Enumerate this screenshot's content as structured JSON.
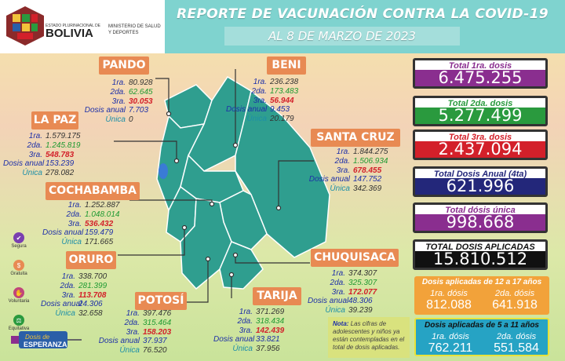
{
  "header": {
    "title": "REPORTE DE VACUNACIÓN CONTRA LA COVID-19",
    "date": "AL  8 DE MARZO  DE 2023"
  },
  "logo": {
    "estado": "ESTADO PLURINACIONAL DE",
    "country": "BOLIVIA",
    "ministerio": "MINISTERIO DE SALUD Y DEPORTES"
  },
  "colors": {
    "dept_label": "#e88a53",
    "map_fill": "#2f9e8f",
    "dose1": "#1d2fa8",
    "dose2": "#1f9a32",
    "dose3": "#d3202a"
  },
  "departments": {
    "pando": {
      "name": "PANDO",
      "rows": [
        {
          "label": "1ra.",
          "value": "80.928"
        },
        {
          "label": "2da.",
          "value": "62.645"
        },
        {
          "label": "3ra.",
          "value": "30.053"
        },
        {
          "label": "Dosis anual",
          "value": "7.703"
        },
        {
          "label": "Única",
          "value": "0"
        }
      ]
    },
    "beni": {
      "name": "BENI",
      "rows": [
        {
          "label": "1ra.",
          "value": "236.238"
        },
        {
          "label": "2da.",
          "value": "173.483"
        },
        {
          "label": "3ra.",
          "value": "56.944"
        },
        {
          "label": "Dosis anual",
          "value": "9.453"
        },
        {
          "label": "Única",
          "value": "20.179"
        }
      ]
    },
    "lapaz": {
      "name": "LA PAZ",
      "rows": [
        {
          "label": "1ra.",
          "value": "1.579.175"
        },
        {
          "label": "2da.",
          "value": "1.245.819"
        },
        {
          "label": "3ra.",
          "value": "548.783"
        },
        {
          "label": "Dosis anual",
          "value": "153.239"
        },
        {
          "label": "Única",
          "value": "278.082"
        }
      ]
    },
    "santacruz": {
      "name": "SANTA CRUZ",
      "rows": [
        {
          "label": "1ra.",
          "value": "1.844.275"
        },
        {
          "label": "2da.",
          "value": "1.506.934"
        },
        {
          "label": "3ra.",
          "value": "678.455"
        },
        {
          "label": "Dosis anual",
          "value": "147.752"
        },
        {
          "label": "Única",
          "value": "342.369"
        }
      ]
    },
    "cochabamba": {
      "name": "COCHABAMBA",
      "rows": [
        {
          "label": "1ra.",
          "value": "1.252.887"
        },
        {
          "label": "2da.",
          "value": "1.048.014"
        },
        {
          "label": "3ra.",
          "value": "536.432"
        },
        {
          "label": "Dosis anual",
          "value": "159.479"
        },
        {
          "label": "Única",
          "value": "171.665"
        }
      ]
    },
    "oruro": {
      "name": "ORURO",
      "rows": [
        {
          "label": "1ra.",
          "value": "338.700"
        },
        {
          "label": "2da.",
          "value": "281.399"
        },
        {
          "label": "3ra.",
          "value": "113.708"
        },
        {
          "label": "Dosis anual",
          "value": "24.306"
        },
        {
          "label": "Única",
          "value": "32.658"
        }
      ]
    },
    "chuquisaca": {
      "name": "CHUQUISACA",
      "rows": [
        {
          "label": "1ra.",
          "value": "374.307"
        },
        {
          "label": "2da.",
          "value": "325.307"
        },
        {
          "label": "3ra.",
          "value": "172.077"
        },
        {
          "label": "Dosis anual",
          "value": "48.306"
        },
        {
          "label": "Única",
          "value": "39.239"
        }
      ]
    },
    "potosi": {
      "name": "POTOSÍ",
      "rows": [
        {
          "label": "1ra.",
          "value": "397.476"
        },
        {
          "label": "2da.",
          "value": "315.464"
        },
        {
          "label": "3ra.",
          "value": "158.203"
        },
        {
          "label": "Dosis anual",
          "value": "37.937"
        },
        {
          "label": "Única",
          "value": "76.520"
        }
      ]
    },
    "tarija": {
      "name": "TARIJA",
      "rows": [
        {
          "label": "1ra.",
          "value": "371.269"
        },
        {
          "label": "2da.",
          "value": "318.434"
        },
        {
          "label": "3ra.",
          "value": "142.439"
        },
        {
          "label": "Dosis anual",
          "value": "33.821"
        },
        {
          "label": "Única",
          "value": "37.956"
        }
      ]
    }
  },
  "totals": [
    {
      "title": "Total 1ra. dosis",
      "value": "6.475.255",
      "color": "#8a2e8f"
    },
    {
      "title": "Total 2da. dosis",
      "value": "5.277.499",
      "color": "#2a9a3e"
    },
    {
      "title": "Total 3ra. dosis",
      "value": "2.437.094",
      "color": "#d3202a"
    },
    {
      "title": "Total Dosis Anual (4ta)",
      "value": "621.996",
      "color": "#23277a"
    },
    {
      "title": "Total dósis única",
      "value": "998.668",
      "color": "#8a2e8f"
    },
    {
      "title": "TOTAL DOSIS APLICADAS",
      "value": "15.810.512",
      "color": "#111111"
    }
  ],
  "age_12_17": {
    "title": "Dosis aplicadas de 12 a 17 años",
    "first_label": "1ra. dósis",
    "first_value": "812.088",
    "second_label": "2da. dósis",
    "second_value": "641.918",
    "color": "#f2a23a"
  },
  "age_5_11": {
    "title": "Dosis aplicadas de 5 a 11 años",
    "first_label": "1ra. dósis",
    "first_value": "762.211",
    "second_label": "2da. dósis",
    "second_value": "551.584",
    "color": "#26a3c4"
  },
  "note": {
    "prefix": "Nota:",
    "text": "Las cifras de adolescentes y niños ya están contempladas en el total de dosis aplicadas."
  },
  "legend": [
    {
      "label": "Segura",
      "icon": "shield-icon",
      "color": "#7a3fb0"
    },
    {
      "label": "Gratuita",
      "icon": "coin-icon",
      "color": "#e88a53"
    },
    {
      "label": "Voluntaria",
      "icon": "hand-icon",
      "color": "#c0457a"
    },
    {
      "label": "Equitativa",
      "icon": "scale-icon",
      "color": "#2a9a3e"
    }
  ],
  "campaign": {
    "line1": "Dosis de",
    "line2": "ESPERANZA"
  }
}
